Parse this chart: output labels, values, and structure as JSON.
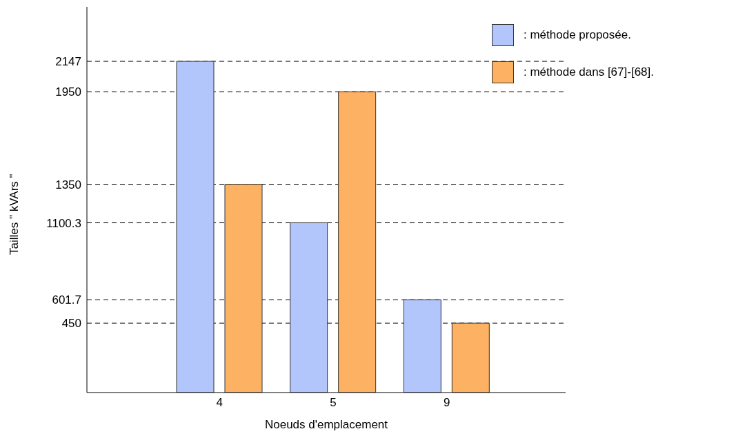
{
  "chart_data": {
    "type": "bar",
    "xlabel": "Noeuds d'emplacement",
    "ylabel": "Tailles  \" kVArs \"",
    "categories": [
      "4",
      "5",
      "9"
    ],
    "series": [
      {
        "name": ": méthode proposée.",
        "color": "#b3c6fb",
        "values": [
          2147,
          1100.3,
          601.7
        ]
      },
      {
        "name": ": méthode dans [67]-[68].",
        "color": "#fdb163",
        "values": [
          1350,
          1950,
          450
        ]
      }
    ],
    "ylim": [
      0,
      2500
    ],
    "yticks": [
      450,
      601.7,
      1100.3,
      1350,
      1950,
      2147
    ],
    "grid": "y",
    "legend": "top right"
  }
}
